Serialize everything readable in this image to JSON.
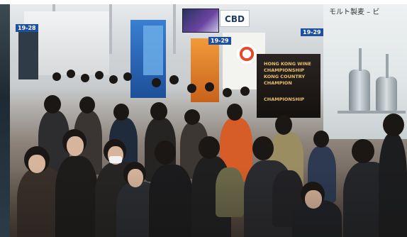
{
  "scene": {
    "description_free": true,
    "signs": {
      "aisle_number_1": "19-28",
      "aisle_number_2": "19-29",
      "aisle_number_3": "19-29",
      "cbd_sign": "CBD",
      "poster_japanese": "モルト製麦 – ビ",
      "wine_line_1": "HONG KONG WINE",
      "wine_line_2": "CHAMPIONSHIP",
      "wine_line_3": "KONG COUNTRY CHAMPION",
      "wine_line_4": "CHAMPIONSHIP"
    },
    "colors": {
      "booth_blue": "#1f4fa0",
      "booth_orange": "#f19a3a",
      "sign_gold": "#e7c06a"
    }
  }
}
